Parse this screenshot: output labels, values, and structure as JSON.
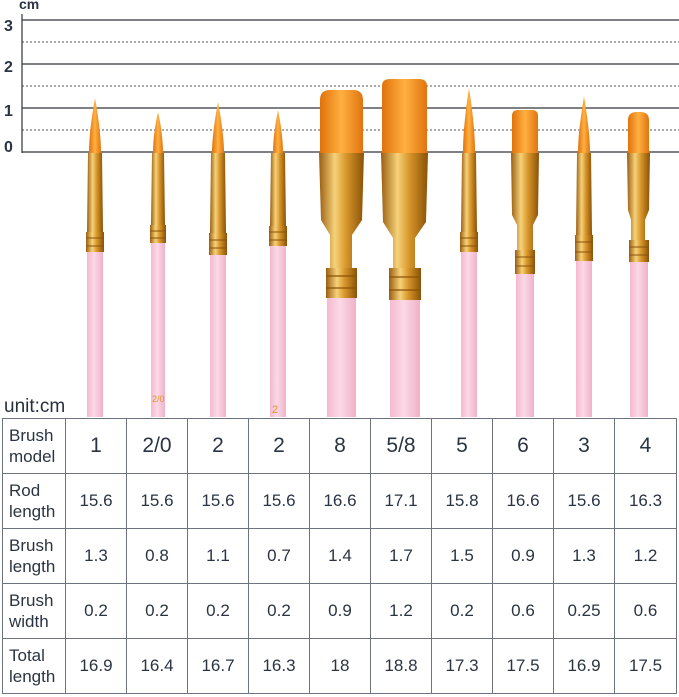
{
  "ruler": {
    "unit": "cm",
    "ticks": [
      "3",
      "2",
      "1",
      "0"
    ]
  },
  "brush_marks": [
    "2/0",
    "2"
  ],
  "table": {
    "unit_label": "unit:cm",
    "rows": [
      {
        "label_lines": [
          "Brush",
          "model"
        ],
        "values": [
          "1",
          "2/0",
          "2",
          "2",
          "8",
          "5/8",
          "5",
          "6",
          "3",
          "4"
        ]
      },
      {
        "label_lines": [
          "Rod",
          "length"
        ],
        "values": [
          "15.6",
          "15.6",
          "15.6",
          "15.6",
          "16.6",
          "17.1",
          "15.8",
          "16.6",
          "15.6",
          "16.3"
        ]
      },
      {
        "label_lines": [
          "Brush",
          "length"
        ],
        "values": [
          "1.3",
          "0.8",
          "1.1",
          "0.7",
          "1.4",
          "1.7",
          "1.5",
          "0.9",
          "1.3",
          "1.2"
        ]
      },
      {
        "label_lines": [
          "Brush",
          "width"
        ],
        "values": [
          "0.2",
          "0.2",
          "0.2",
          "0.2",
          "0.9",
          "1.2",
          "0.2",
          "0.6",
          "0.25",
          "0.6"
        ]
      },
      {
        "label_lines": [
          "Total",
          "length"
        ],
        "values": [
          "16.9",
          "16.4",
          "16.7",
          "16.3",
          "18",
          "18.8",
          "17.3",
          "17.5",
          "16.9",
          "17.5"
        ]
      }
    ]
  },
  "colors": {
    "handle": "#f7c9dc",
    "ferrule": "#d89a2a",
    "bristle": "#f39a1f",
    "grid": "#30343a"
  }
}
